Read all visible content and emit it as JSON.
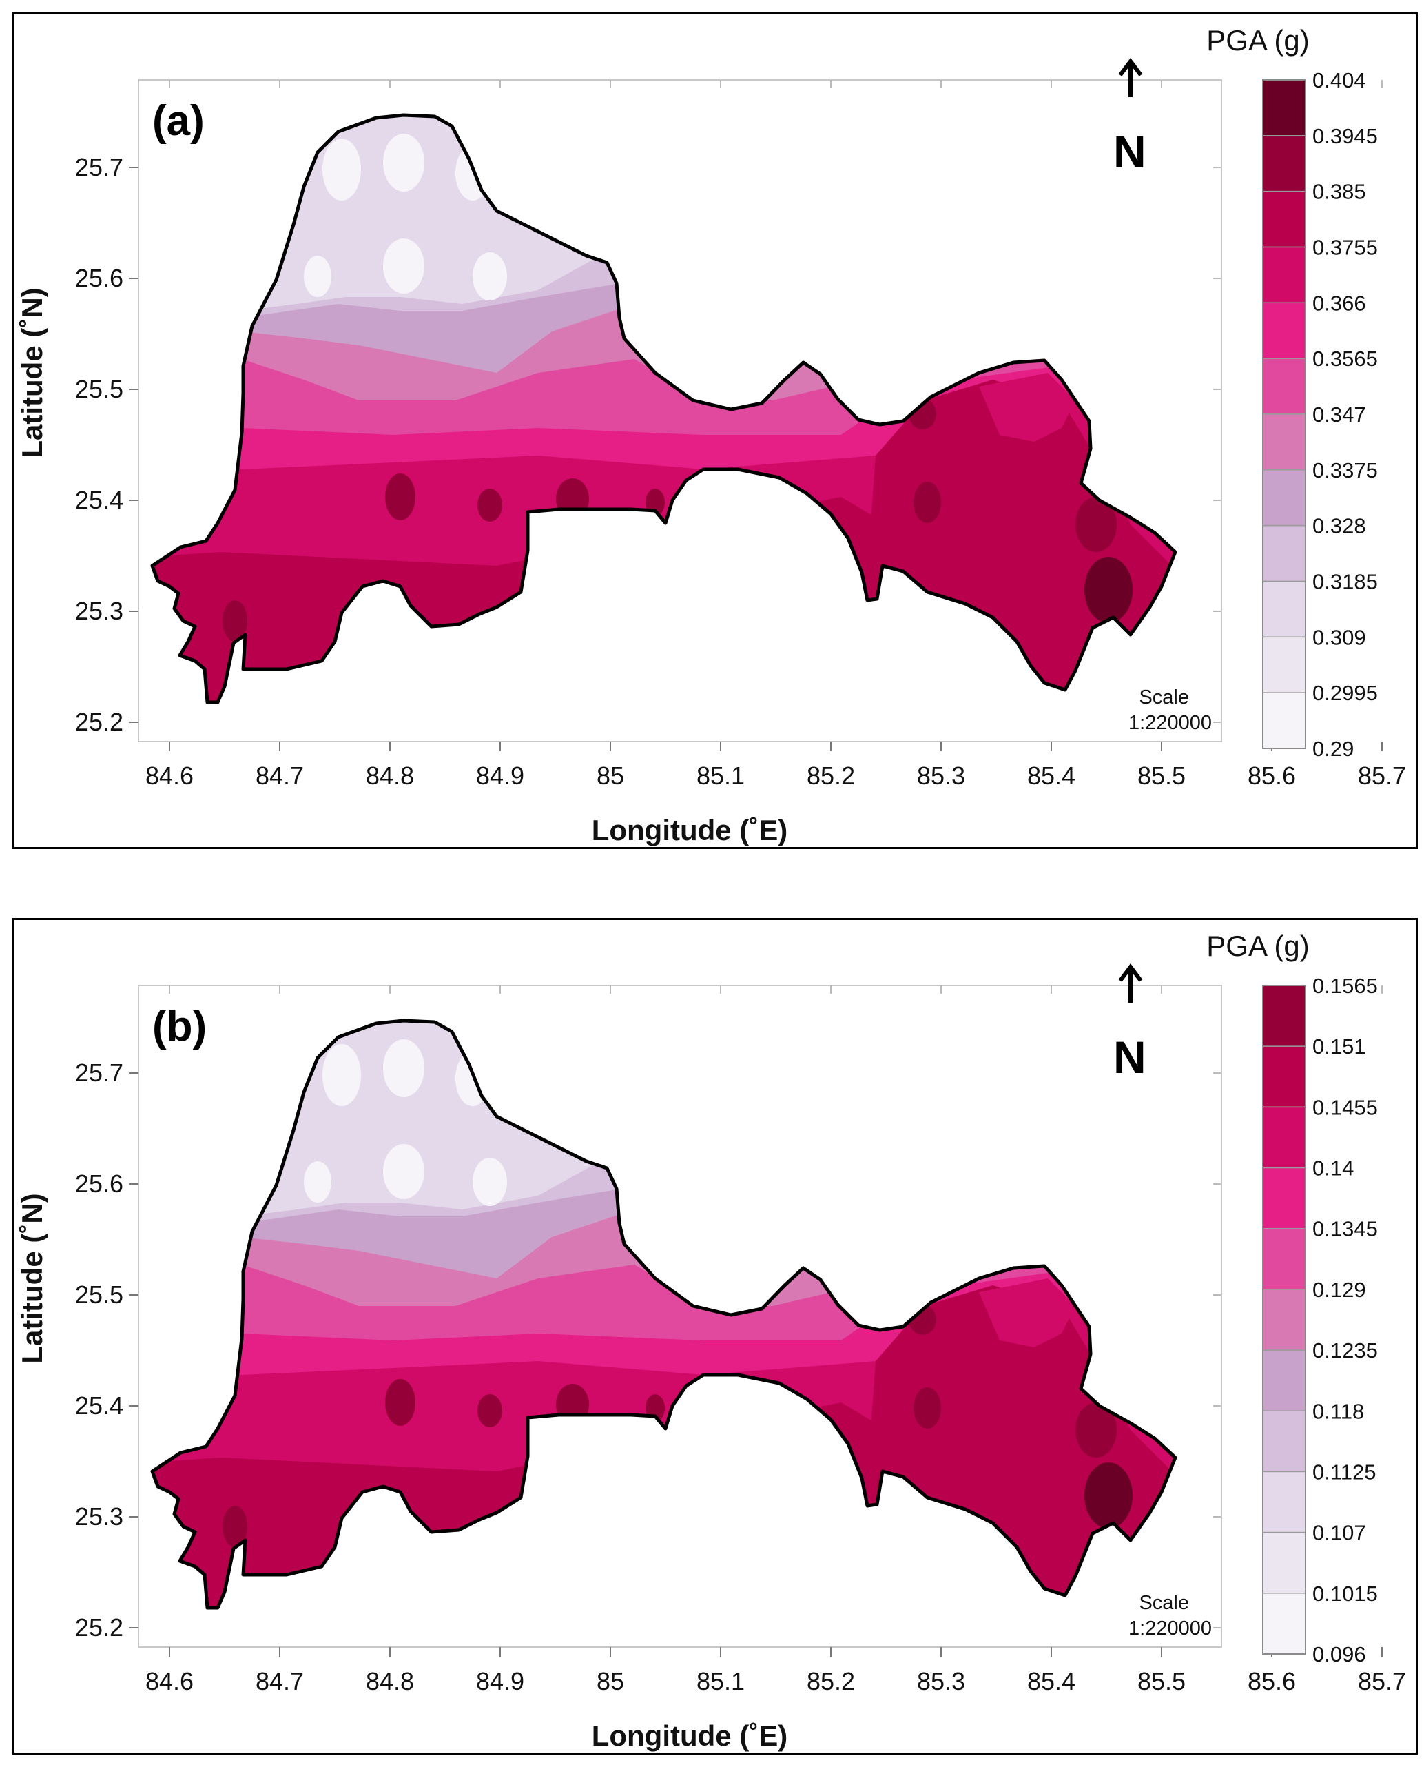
{
  "figure": {
    "panels": [
      {
        "label": "(a)",
        "legend_title": "PGA (g)",
        "legend_breaks": [
          "0.404",
          "0.3945",
          "0.385",
          "0.3755",
          "0.366",
          "0.3565",
          "0.347",
          "0.3375",
          "0.328",
          "0.3185",
          "0.309",
          "0.2995",
          "0.29"
        ],
        "scale_label": "Scale",
        "scale_value": "1:220000"
      },
      {
        "label": "(b)",
        "legend_title": "PGA (g)",
        "legend_breaks": [
          "0.1565",
          "0.151",
          "0.1455",
          "0.14",
          "0.1345",
          "0.129",
          "0.1235",
          "0.118",
          "0.1125",
          "0.107",
          "0.1015",
          "0.096"
        ],
        "scale_label": "Scale",
        "scale_value": "1:220000"
      }
    ],
    "x_axis_title": "Longitude (˚E)",
    "y_axis_title": "Latitude (˚N)",
    "x_ticks": [
      "84.6",
      "84.7",
      "84.8",
      "84.9",
      "85",
      "85.1",
      "85.2",
      "85.3",
      "85.4",
      "85.5",
      "85.6",
      "85.7"
    ],
    "y_ticks": [
      "25.7",
      "25.6",
      "25.5",
      "25.4",
      "25.3",
      "25.2"
    ],
    "north_label": "N",
    "legend_colors": [
      "#6b0026",
      "#950039",
      "#b8004c",
      "#d20a67",
      "#e61f86",
      "#e0499d",
      "#d979b4",
      "#c9a2cc",
      "#d6bfdd",
      "#e3d9ea",
      "#ece6f1",
      "#f6f3f9"
    ]
  }
}
